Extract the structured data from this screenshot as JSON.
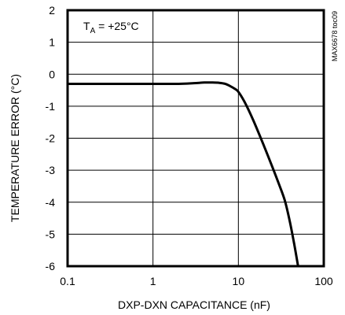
{
  "chart_data": {
    "type": "line",
    "xscale": "log",
    "xlabel": "DXP-DXN CAPACITANCE (nF)",
    "ylabel": "TEMPERATURE ERROR (°C)",
    "xlim": [
      0.1,
      100
    ],
    "ylim": [
      -6,
      2
    ],
    "grid": true,
    "x_tick_labels": [
      "0.1",
      "1",
      "10",
      "100"
    ],
    "y_tick_labels": [
      "2",
      "1",
      "0",
      "-1",
      "-2",
      "-3",
      "-4",
      "-5",
      "-6"
    ],
    "annotation": {
      "main": "T",
      "sub": "A",
      "rest": " = +25°C"
    },
    "part_number": "MAX6678 toc09",
    "series": [
      {
        "x": [
          0.1,
          0.5,
          1,
          2,
          3,
          4,
          5,
          6,
          7,
          8,
          9,
          10,
          12,
          15,
          20,
          25,
          30,
          35,
          40,
          45,
          50
        ],
        "y": [
          -0.3,
          -0.3,
          -0.3,
          -0.3,
          -0.28,
          -0.26,
          -0.26,
          -0.27,
          -0.3,
          -0.37,
          -0.45,
          -0.55,
          -0.9,
          -1.45,
          -2.25,
          -2.9,
          -3.45,
          -3.95,
          -4.6,
          -5.3,
          -6.0
        ]
      }
    ]
  }
}
